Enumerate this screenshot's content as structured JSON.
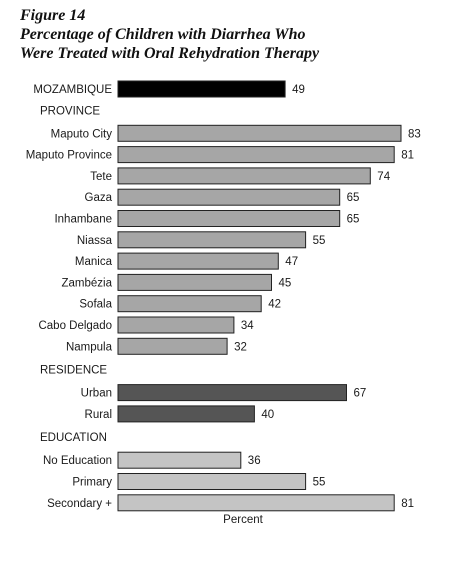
{
  "title": {
    "figure": "Figure 14",
    "line1": "Percentage of Children with Diarrhea Who",
    "line2": "Were Treated with Oral Rehydration Therapy"
  },
  "chart_data": {
    "type": "bar",
    "orientation": "horizontal",
    "xlabel": "Percent",
    "xlim": [
      0,
      100
    ],
    "grid": false,
    "groups": [
      {
        "name": "",
        "items": [
          {
            "label": "MOZAMBIQUE",
            "value": 49,
            "color": "#000000"
          }
        ]
      },
      {
        "name": "PROVINCE",
        "items": [
          {
            "label": "Maputo City",
            "value": 83,
            "color": "#a6a6a6"
          },
          {
            "label": "Maputo Province",
            "value": 81,
            "color": "#a6a6a6"
          },
          {
            "label": "Tete",
            "value": 74,
            "color": "#a6a6a6"
          },
          {
            "label": "Gaza",
            "value": 65,
            "color": "#a6a6a6"
          },
          {
            "label": "Inhambane",
            "value": 65,
            "color": "#a6a6a6"
          },
          {
            "label": "Niassa",
            "value": 55,
            "color": "#a6a6a6"
          },
          {
            "label": "Manica",
            "value": 47,
            "color": "#a6a6a6"
          },
          {
            "label": "Zambézia",
            "value": 45,
            "color": "#a6a6a6"
          },
          {
            "label": "Sofala",
            "value": 42,
            "color": "#a6a6a6"
          },
          {
            "label": "Cabo Delgado",
            "value": 34,
            "color": "#a6a6a6"
          },
          {
            "label": "Nampula",
            "value": 32,
            "color": "#a6a6a6"
          }
        ]
      },
      {
        "name": "RESIDENCE",
        "items": [
          {
            "label": "Urban",
            "value": 67,
            "color": "#555555"
          },
          {
            "label": "Rural",
            "value": 40,
            "color": "#555555"
          }
        ]
      },
      {
        "name": "EDUCATION",
        "items": [
          {
            "label": "No Education",
            "value": 36,
            "color": "#c4c4c4"
          },
          {
            "label": "Primary",
            "value": 55,
            "color": "#c4c4c4"
          },
          {
            "label": "Secondary +",
            "value": 81,
            "color": "#c4c4c4"
          }
        ]
      }
    ]
  }
}
